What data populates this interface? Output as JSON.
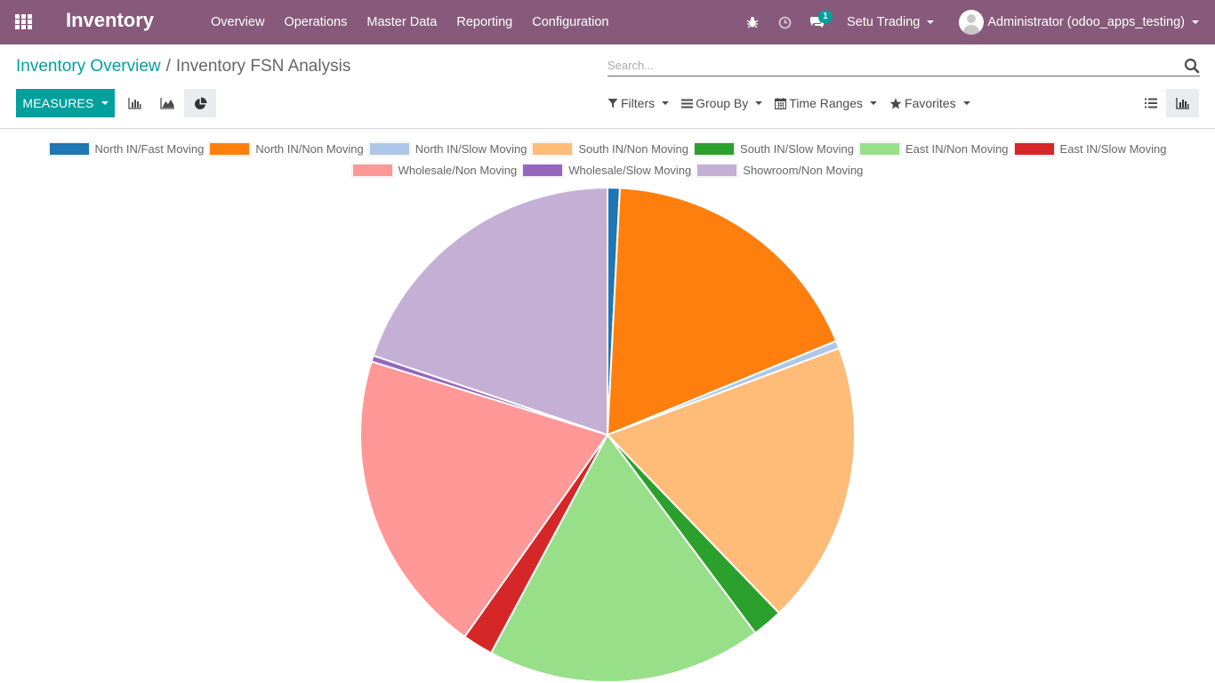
{
  "navbar": {
    "brand": "Inventory",
    "menu": [
      "Overview",
      "Operations",
      "Master Data",
      "Reporting",
      "Configuration"
    ],
    "messages_badge": "1",
    "company": "Setu Trading",
    "user": "Administrator (odoo_apps_testing)"
  },
  "breadcrumb": {
    "parent": "Inventory Overview",
    "separator": "/",
    "current": "Inventory FSN Analysis"
  },
  "search": {
    "placeholder": "Search..."
  },
  "toolbar": {
    "measures_label": "MEASURES",
    "filters_label": "Filters",
    "group_by_label": "Group By",
    "time_ranges_label": "Time Ranges",
    "favorites_label": "Favorites"
  },
  "chart_data": {
    "type": "pie",
    "labels": [
      "North IN/Fast Moving",
      "North IN/Non Moving",
      "North IN/Slow Moving",
      "South IN/Non Moving",
      "South IN/Slow Moving",
      "East IN/Non Moving",
      "East IN/Slow Moving",
      "Wholesale/Non Moving",
      "Wholesale/Slow Moving",
      "Showroom/Non Moving"
    ],
    "values": [
      0.8,
      18.0,
      0.5,
      18.5,
      2.0,
      18.0,
      2.0,
      20.0,
      0.4,
      19.8
    ],
    "colors": [
      "#1f77b4",
      "#ff7f0e",
      "#aec7e8",
      "#ffbb78",
      "#2ca02c",
      "#98df8a",
      "#d62728",
      "#ff9896",
      "#9467bd",
      "#c5b0d5"
    ],
    "legend": "top"
  }
}
